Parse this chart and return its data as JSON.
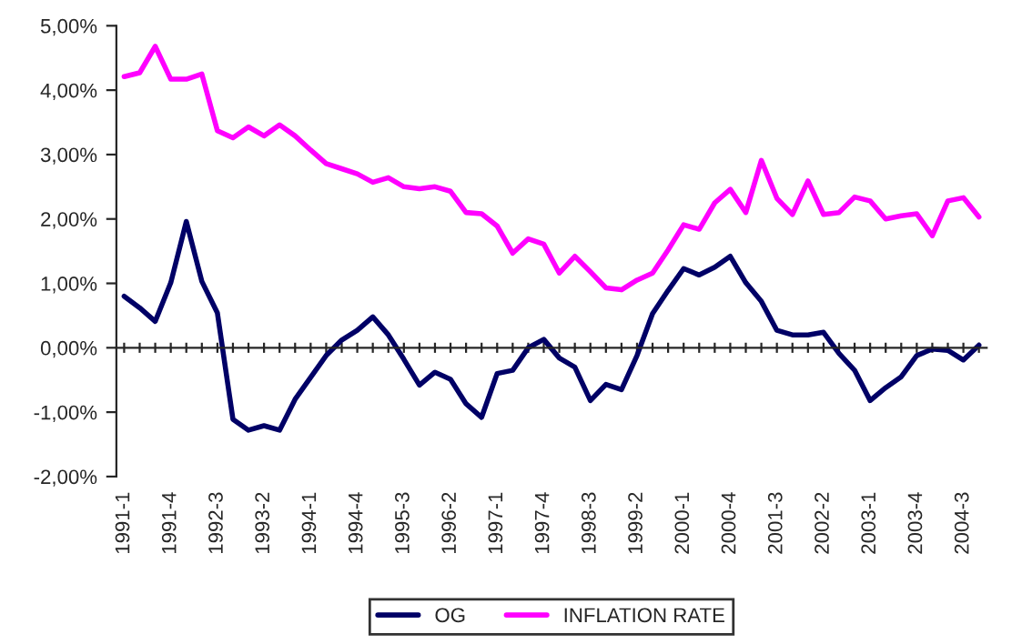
{
  "chart_data": {
    "type": "line",
    "categories": [
      "1991-1",
      null,
      null,
      "1991-4",
      null,
      null,
      "1992-3",
      null,
      null,
      "1993-2",
      null,
      null,
      "1994-1",
      null,
      null,
      "1994-4",
      null,
      null,
      "1995-3",
      null,
      null,
      "1996-2",
      null,
      null,
      "1997-1",
      null,
      null,
      "1997-4",
      null,
      null,
      "1998-3",
      null,
      null,
      "1999-2",
      null,
      null,
      "2000-1",
      null,
      null,
      "2000-4",
      null,
      null,
      "2001-3",
      null,
      null,
      "2002-2",
      null,
      null,
      "2003-1",
      null,
      null,
      "2003-4",
      null,
      null,
      "2004-3",
      null
    ],
    "series": [
      {
        "name": "OG",
        "color": "#000066",
        "values": [
          0.8,
          0.62,
          0.41,
          1.01,
          1.96,
          1.03,
          0.54,
          -1.11,
          -1.28,
          -1.21,
          -1.28,
          -0.8,
          -0.46,
          -0.12,
          0.12,
          0.27,
          0.48,
          0.2,
          -0.18,
          -0.58,
          -0.38,
          -0.49,
          -0.87,
          -1.08,
          -0.4,
          -0.35,
          0.0,
          0.13,
          -0.16,
          -0.3,
          -0.82,
          -0.57,
          -0.65,
          -0.12,
          0.53,
          0.89,
          1.23,
          1.13,
          1.25,
          1.42,
          1.01,
          0.72,
          0.27,
          0.2,
          0.2,
          0.24,
          -0.09,
          -0.35,
          -0.82,
          -0.62,
          -0.45,
          -0.12,
          -0.02,
          -0.04,
          -0.19,
          0.04
        ]
      },
      {
        "name": "INFLATION RATE",
        "color": "#ff00ff",
        "values": [
          4.21,
          4.27,
          4.68,
          4.17,
          4.17,
          4.25,
          3.37,
          3.26,
          3.43,
          3.29,
          3.46,
          3.29,
          3.07,
          2.86,
          2.78,
          2.7,
          2.57,
          2.64,
          2.5,
          2.47,
          2.5,
          2.43,
          2.1,
          2.08,
          1.89,
          1.47,
          1.69,
          1.61,
          1.16,
          1.42,
          1.18,
          0.93,
          0.9,
          1.05,
          1.16,
          1.52,
          1.91,
          1.84,
          2.25,
          2.46,
          2.1,
          2.91,
          2.32,
          2.07,
          2.59,
          2.07,
          2.1,
          2.34,
          2.28,
          2.0,
          2.05,
          2.08,
          1.74,
          2.28,
          2.33,
          2.03
        ]
      }
    ],
    "ylim": [
      -2,
      5
    ],
    "yticks": [
      {
        "value": -2,
        "label": "-2,00%"
      },
      {
        "value": -1,
        "label": "-1,00%"
      },
      {
        "value": 0,
        "label": "0,00%"
      },
      {
        "value": 1,
        "label": "1,00%"
      },
      {
        "value": 2,
        "label": "2,00%"
      },
      {
        "value": 3,
        "label": "3,00%"
      },
      {
        "value": 4,
        "label": "4,00%"
      },
      {
        "value": 5,
        "label": "5,00%"
      }
    ],
    "legend": "bottom",
    "marker": "none",
    "line_style": "solid"
  }
}
